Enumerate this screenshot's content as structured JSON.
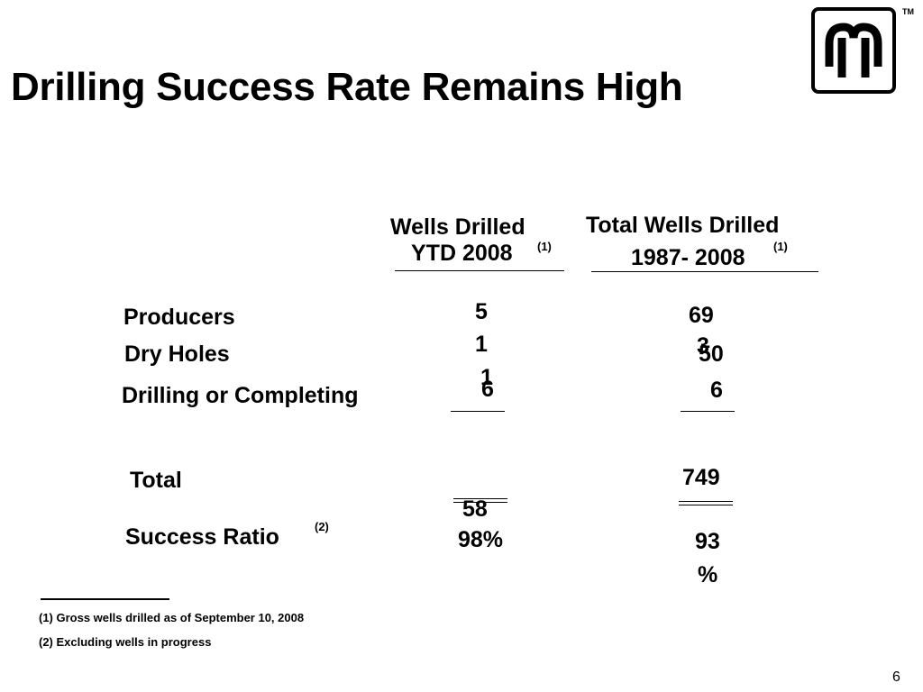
{
  "title": "Drilling Success Rate Remains High",
  "logo": {
    "trademark": "TM"
  },
  "columns": {
    "ytd": {
      "line1": "Wells Drilled",
      "line2": "YTD 2008",
      "note": "(1)"
    },
    "total": {
      "line1": "Total Wells Drilled",
      "line2": "1987- 2008",
      "note": "(1)"
    }
  },
  "rows": {
    "producers": {
      "label": "Producers",
      "ytd_line1": "5",
      "ytd_line2": "1",
      "total_line1": "69",
      "total_line2": "3"
    },
    "dry_holes": {
      "label": "Dry Holes",
      "ytd_line1": "1",
      "total": "50"
    },
    "drilling": {
      "label": "Drilling or Completing",
      "ytd": "6",
      "total": "6"
    },
    "total": {
      "label": "Total",
      "ytd": "58",
      "total": "749"
    },
    "success": {
      "label": "Success Ratio",
      "note": "(2)",
      "ytd": "98%",
      "total_line1": "93",
      "total_line2": "%"
    }
  },
  "footnotes": [
    "(1) Gross wells drilled as of September 10, 2008",
    "(2) Excluding wells in progress"
  ],
  "page_number": "6"
}
